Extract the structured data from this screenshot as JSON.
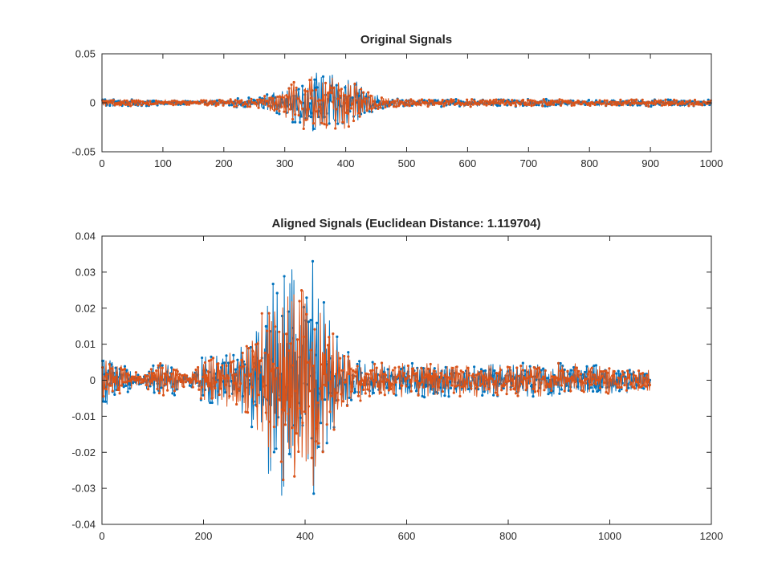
{
  "colors": {
    "series_1": "#0072BD",
    "series_2": "#D95319",
    "axes": "#262626",
    "background": "#ffffff"
  },
  "chart_data": [
    {
      "type": "line",
      "title": "Original Signals",
      "xlabel": "",
      "ylabel": "",
      "xlim": [
        0,
        1000
      ],
      "ylim": [
        -0.05,
        0.05
      ],
      "xticks": [
        0,
        100,
        200,
        300,
        400,
        500,
        600,
        700,
        800,
        900,
        1000
      ],
      "yticks": [
        -0.05,
        0,
        0.05
      ],
      "xtick_labels": [
        "0",
        "100",
        "200",
        "300",
        "400",
        "500",
        "600",
        "700",
        "800",
        "900",
        "1000"
      ],
      "ytick_labels": [
        "-0.05",
        "0",
        "0.05"
      ],
      "markers": true,
      "grid": false,
      "series": [
        {
          "color": "#0072BD",
          "x_start": 1,
          "x_end": 1000,
          "envelope": [
            [
              0,
              0.005
            ],
            [
              50,
              0.004
            ],
            [
              100,
              0.003
            ],
            [
              150,
              0.002
            ],
            [
              200,
              0.004
            ],
            [
              250,
              0.006
            ],
            [
              290,
              0.012
            ],
            [
              320,
              0.025
            ],
            [
              340,
              0.034
            ],
            [
              360,
              0.032
            ],
            [
              380,
              0.03
            ],
            [
              400,
              0.03
            ],
            [
              420,
              0.025
            ],
            [
              440,
              0.012
            ],
            [
              470,
              0.005
            ],
            [
              500,
              0.004
            ],
            [
              600,
              0.004
            ],
            [
              700,
              0.004
            ],
            [
              800,
              0.003
            ],
            [
              900,
              0.004
            ],
            [
              1000,
              0.003
            ]
          ]
        },
        {
          "color": "#D95319",
          "x_start": 1,
          "x_end": 1000,
          "envelope": [
            [
              0,
              0.004
            ],
            [
              50,
              0.004
            ],
            [
              100,
              0.003
            ],
            [
              150,
              0.002
            ],
            [
              200,
              0.004
            ],
            [
              250,
              0.005
            ],
            [
              290,
              0.011
            ],
            [
              320,
              0.024
            ],
            [
              340,
              0.032
            ],
            [
              360,
              0.031
            ],
            [
              380,
              0.029
            ],
            [
              400,
              0.029
            ],
            [
              420,
              0.024
            ],
            [
              440,
              0.011
            ],
            [
              470,
              0.005
            ],
            [
              500,
              0.004
            ],
            [
              600,
              0.004
            ],
            [
              700,
              0.004
            ],
            [
              800,
              0.003
            ],
            [
              900,
              0.004
            ],
            [
              1000,
              0.003
            ]
          ]
        }
      ]
    },
    {
      "type": "line",
      "title": "Aligned Signals (Euclidean Distance: 1.119704)",
      "xlabel": "",
      "ylabel": "",
      "xlim": [
        0,
        1200
      ],
      "ylim": [
        -0.04,
        0.04
      ],
      "xticks": [
        0,
        200,
        400,
        600,
        800,
        1000,
        1200
      ],
      "yticks": [
        -0.04,
        -0.03,
        -0.02,
        -0.01,
        0,
        0.01,
        0.02,
        0.03,
        0.04
      ],
      "xtick_labels": [
        "0",
        "200",
        "400",
        "600",
        "800",
        "1000",
        "1200"
      ],
      "ytick_labels": [
        "-0.04",
        "-0.03",
        "-0.02",
        "-0.01",
        "0",
        "0.01",
        "0.02",
        "0.03",
        "0.04"
      ],
      "markers": true,
      "grid": false,
      "series": [
        {
          "color": "#0072BD",
          "x_start": 1,
          "x_end": 1080,
          "envelope": [
            [
              0,
              0.008
            ],
            [
              40,
              0.005
            ],
            [
              80,
              0.001
            ],
            [
              100,
              0.006
            ],
            [
              140,
              0.005
            ],
            [
              170,
              0.001
            ],
            [
              200,
              0.007
            ],
            [
              250,
              0.008
            ],
            [
              290,
              0.013
            ],
            [
              320,
              0.022
            ],
            [
              345,
              0.035
            ],
            [
              360,
              0.032
            ],
            [
              380,
              0.033
            ],
            [
              400,
              0.032
            ],
            [
              420,
              0.034
            ],
            [
              440,
              0.02
            ],
            [
              470,
              0.01
            ],
            [
              500,
              0.006
            ],
            [
              560,
              0.005
            ],
            [
              600,
              0.005
            ],
            [
              700,
              0.005
            ],
            [
              800,
              0.005
            ],
            [
              900,
              0.005
            ],
            [
              1000,
              0.004
            ],
            [
              1080,
              0.003
            ]
          ]
        },
        {
          "color": "#D95319",
          "x_start": 1,
          "x_end": 1080,
          "envelope": [
            [
              0,
              0.006
            ],
            [
              40,
              0.005
            ],
            [
              80,
              0.001
            ],
            [
              100,
              0.005
            ],
            [
              140,
              0.005
            ],
            [
              170,
              0.001
            ],
            [
              200,
              0.007
            ],
            [
              250,
              0.008
            ],
            [
              290,
              0.012
            ],
            [
              320,
              0.021
            ],
            [
              345,
              0.033
            ],
            [
              360,
              0.031
            ],
            [
              380,
              0.031
            ],
            [
              400,
              0.031
            ],
            [
              420,
              0.032
            ],
            [
              440,
              0.019
            ],
            [
              470,
              0.01
            ],
            [
              500,
              0.006
            ],
            [
              560,
              0.005
            ],
            [
              600,
              0.005
            ],
            [
              700,
              0.005
            ],
            [
              800,
              0.005
            ],
            [
              900,
              0.005
            ],
            [
              1000,
              0.004
            ],
            [
              1080,
              0.003
            ]
          ]
        }
      ]
    }
  ]
}
